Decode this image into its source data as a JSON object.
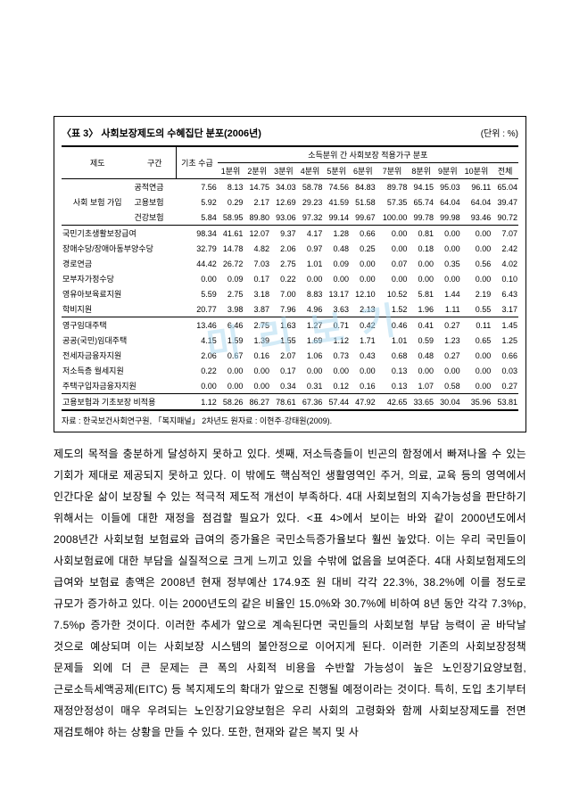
{
  "watermark": "미 리 보 기",
  "table": {
    "title": "〈표 3〉 사회보장제도의 수혜집단 분포(2006년)",
    "unit": "(단위 : %)",
    "h": {
      "system": "제도",
      "interval": "구간",
      "basic": "기초\n수급",
      "group": "소득분위 간 사회보장 적용가구 분포",
      "d1": "1분위",
      "d2": "2분위",
      "d3": "3분위",
      "d4": "4분위",
      "d5": "5분위",
      "d6": "6분위",
      "d7": "7분위",
      "d8": "8분위",
      "d9": "9분위",
      "d10": "10분위",
      "total": "전체"
    },
    "groups": [
      {
        "cat": "사회\n보험\n가입",
        "rows": [
          {
            "l": "공적연금",
            "v": [
              "7.56",
              "8.13",
              "14.75",
              "34.03",
              "58.78",
              "74.56",
              "84.83",
              "89.78",
              "94.15",
              "95.03",
              "96.11",
              "65.04"
            ]
          },
          {
            "l": "고용보험",
            "v": [
              "5.92",
              "0.29",
              "2.17",
              "12.69",
              "29.23",
              "41.59",
              "51.58",
              "57.35",
              "65.74",
              "64.04",
              "64.04",
              "39.47"
            ]
          },
          {
            "l": "건강보험",
            "v": [
              "5.84",
              "58.95",
              "89.80",
              "93.06",
              "97.32",
              "99.14",
              "99.67",
              "100.00",
              "99.78",
              "99.98",
              "93.46",
              "90.72"
            ],
            "bb": true
          }
        ]
      },
      {
        "cat": "",
        "rows": [
          {
            "l": "국민기초생활보장급여",
            "v": [
              "98.34",
              "41.61",
              "12.07",
              "9.37",
              "4.17",
              "1.28",
              "0.66",
              "0.00",
              "0.81",
              "0.00",
              "0.00",
              "7.07"
            ]
          },
          {
            "l": "장애수당/장애아동부양수당",
            "v": [
              "32.79",
              "14.78",
              "4.82",
              "2.06",
              "0.97",
              "0.48",
              "0.25",
              "0.00",
              "0.18",
              "0.00",
              "0.00",
              "2.42"
            ]
          },
          {
            "l": "경로연금",
            "v": [
              "44.42",
              "26.72",
              "7.03",
              "2.75",
              "1.01",
              "0.09",
              "0.00",
              "0.07",
              "0.00",
              "0.35",
              "0.56",
              "4.02"
            ]
          },
          {
            "l": "모부자가정수당",
            "v": [
              "0.00",
              "0.09",
              "0.17",
              "0.22",
              "0.00",
              "0.00",
              "0.00",
              "0.00",
              "0.00",
              "0.00",
              "0.00",
              "0.10"
            ]
          },
          {
            "l": "영유아보육료지원",
            "v": [
              "5.59",
              "2.75",
              "3.18",
              "7.00",
              "8.83",
              "13.17",
              "12.10",
              "10.52",
              "5.81",
              "1.44",
              "2.19",
              "6.43"
            ]
          },
          {
            "l": "학비지원",
            "v": [
              "20.77",
              "3.98",
              "3.87",
              "7.96",
              "4.96",
              "3.63",
              "2.13",
              "1.52",
              "1.96",
              "1.11",
              "0.55",
              "3.17"
            ],
            "bb": true
          }
        ]
      },
      {
        "cat": "",
        "rows": [
          {
            "l": "영구임대주택",
            "v": [
              "13.46",
              "6.46",
              "2.75",
              "1.63",
              "1.27",
              "0.71",
              "0.42",
              "0.46",
              "0.41",
              "0.27",
              "0.11",
              "1.45"
            ]
          },
          {
            "l": "공공(국민)임대주택",
            "v": [
              "4.15",
              "1.59",
              "1.39",
              "1.55",
              "1.69",
              "1.12",
              "1.71",
              "1.01",
              "0.59",
              "1.23",
              "0.65",
              "1.25"
            ]
          },
          {
            "l": "전세자금융자지원",
            "v": [
              "2.06",
              "0.67",
              "0.16",
              "2.07",
              "1.06",
              "0.73",
              "0.43",
              "0.68",
              "0.48",
              "0.27",
              "0.00",
              "0.66"
            ]
          },
          {
            "l": "저소득층 월세지원",
            "v": [
              "0.22",
              "0.00",
              "0.00",
              "0.17",
              "0.00",
              "0.00",
              "0.00",
              "0.13",
              "0.00",
              "0.00",
              "0.00",
              "0.03"
            ]
          },
          {
            "l": "주택구입자금융자지원",
            "v": [
              "0.00",
              "0.00",
              "0.00",
              "0.34",
              "0.31",
              "0.12",
              "0.16",
              "0.13",
              "1.07",
              "0.58",
              "0.00",
              "0.27"
            ],
            "bb": true
          }
        ]
      },
      {
        "cat": "",
        "rows": [
          {
            "l": "고용보험과 기초보장 비적용",
            "v": [
              "1.12",
              "58.26",
              "86.27",
              "78.61",
              "67.36",
              "57.44",
              "47.92",
              "42.65",
              "33.65",
              "30.04",
              "35.96",
              "53.81"
            ],
            "bb2": true
          }
        ]
      }
    ],
    "source": "자료 : 한국보건사회연구원, 「복지패널」 2차년도 원자료 : 이현주·강태원(2009)."
  },
  "body": "제도의 목적을 충분하게 달성하지 못하고 있다. 셋째, 저소득층들이 빈곤의 함정에서 빠져나올 수 있는 기회가 제대로 제공되지 못하고 있다. 이 밖에도 핵심적인 생활영역인 주거, 의료, 교육 등의 영역에서 인간다운 삶이 보장될 수 있는 적극적 제도적 개선이 부족하다. 4대 사회보험의 지속가능성을 판단하기 위해서는 이들에 대한 재정을 점검할 필요가 있다. <표 4>에서 보이는 바와 같이 2000년도에서 2008년간 사회보험 보험료와 급여의 증가율은 국민소득증가율보다 훨씬 높았다. 이는 우리 국민들이 사회보험료에 대한 부담을 실질적으로 크게 느끼고 있을 수밖에 없음을 보여준다. 4대 사회보험제도의 급여와 보험료 총액은 2008년 현재 정부예산 174.9조 원 대비 각각 22.3%, 38.2%에 이를 정도로 규모가 증가하고 있다. 이는 2000년도의 같은 비율인 15.0%와 30.7%에 비하여 8년 동안 각각 7.3%p, 7.5%p 증가한 것이다. 이러한 추세가 앞으로 계속된다면 국민들의 사회보험 부담 능력이 곧 바닥날 것으로 예상되며 이는 사회보장 시스템의 불안정으로 이어지게 된다. 이러한 기존의 사회보장정책 문제들 외에 더 큰 문제는 큰 폭의 사회적 비용을 수반할 가능성이 높은 노인장기요양보험, 근로소득세액공제(EITC) 등 복지제도의 확대가 앞으로 진행될 예정이라는 것이다. 특히, 도입 초기부터 재정안정성이 매우 우려되는 노인장기요양보험은 우리 사회의 고령화와 함께 사회보장제도를 전면 재검토해야 하는 상황을 만들 수 있다. 또한, 현재와 같은 복지 및 사"
}
